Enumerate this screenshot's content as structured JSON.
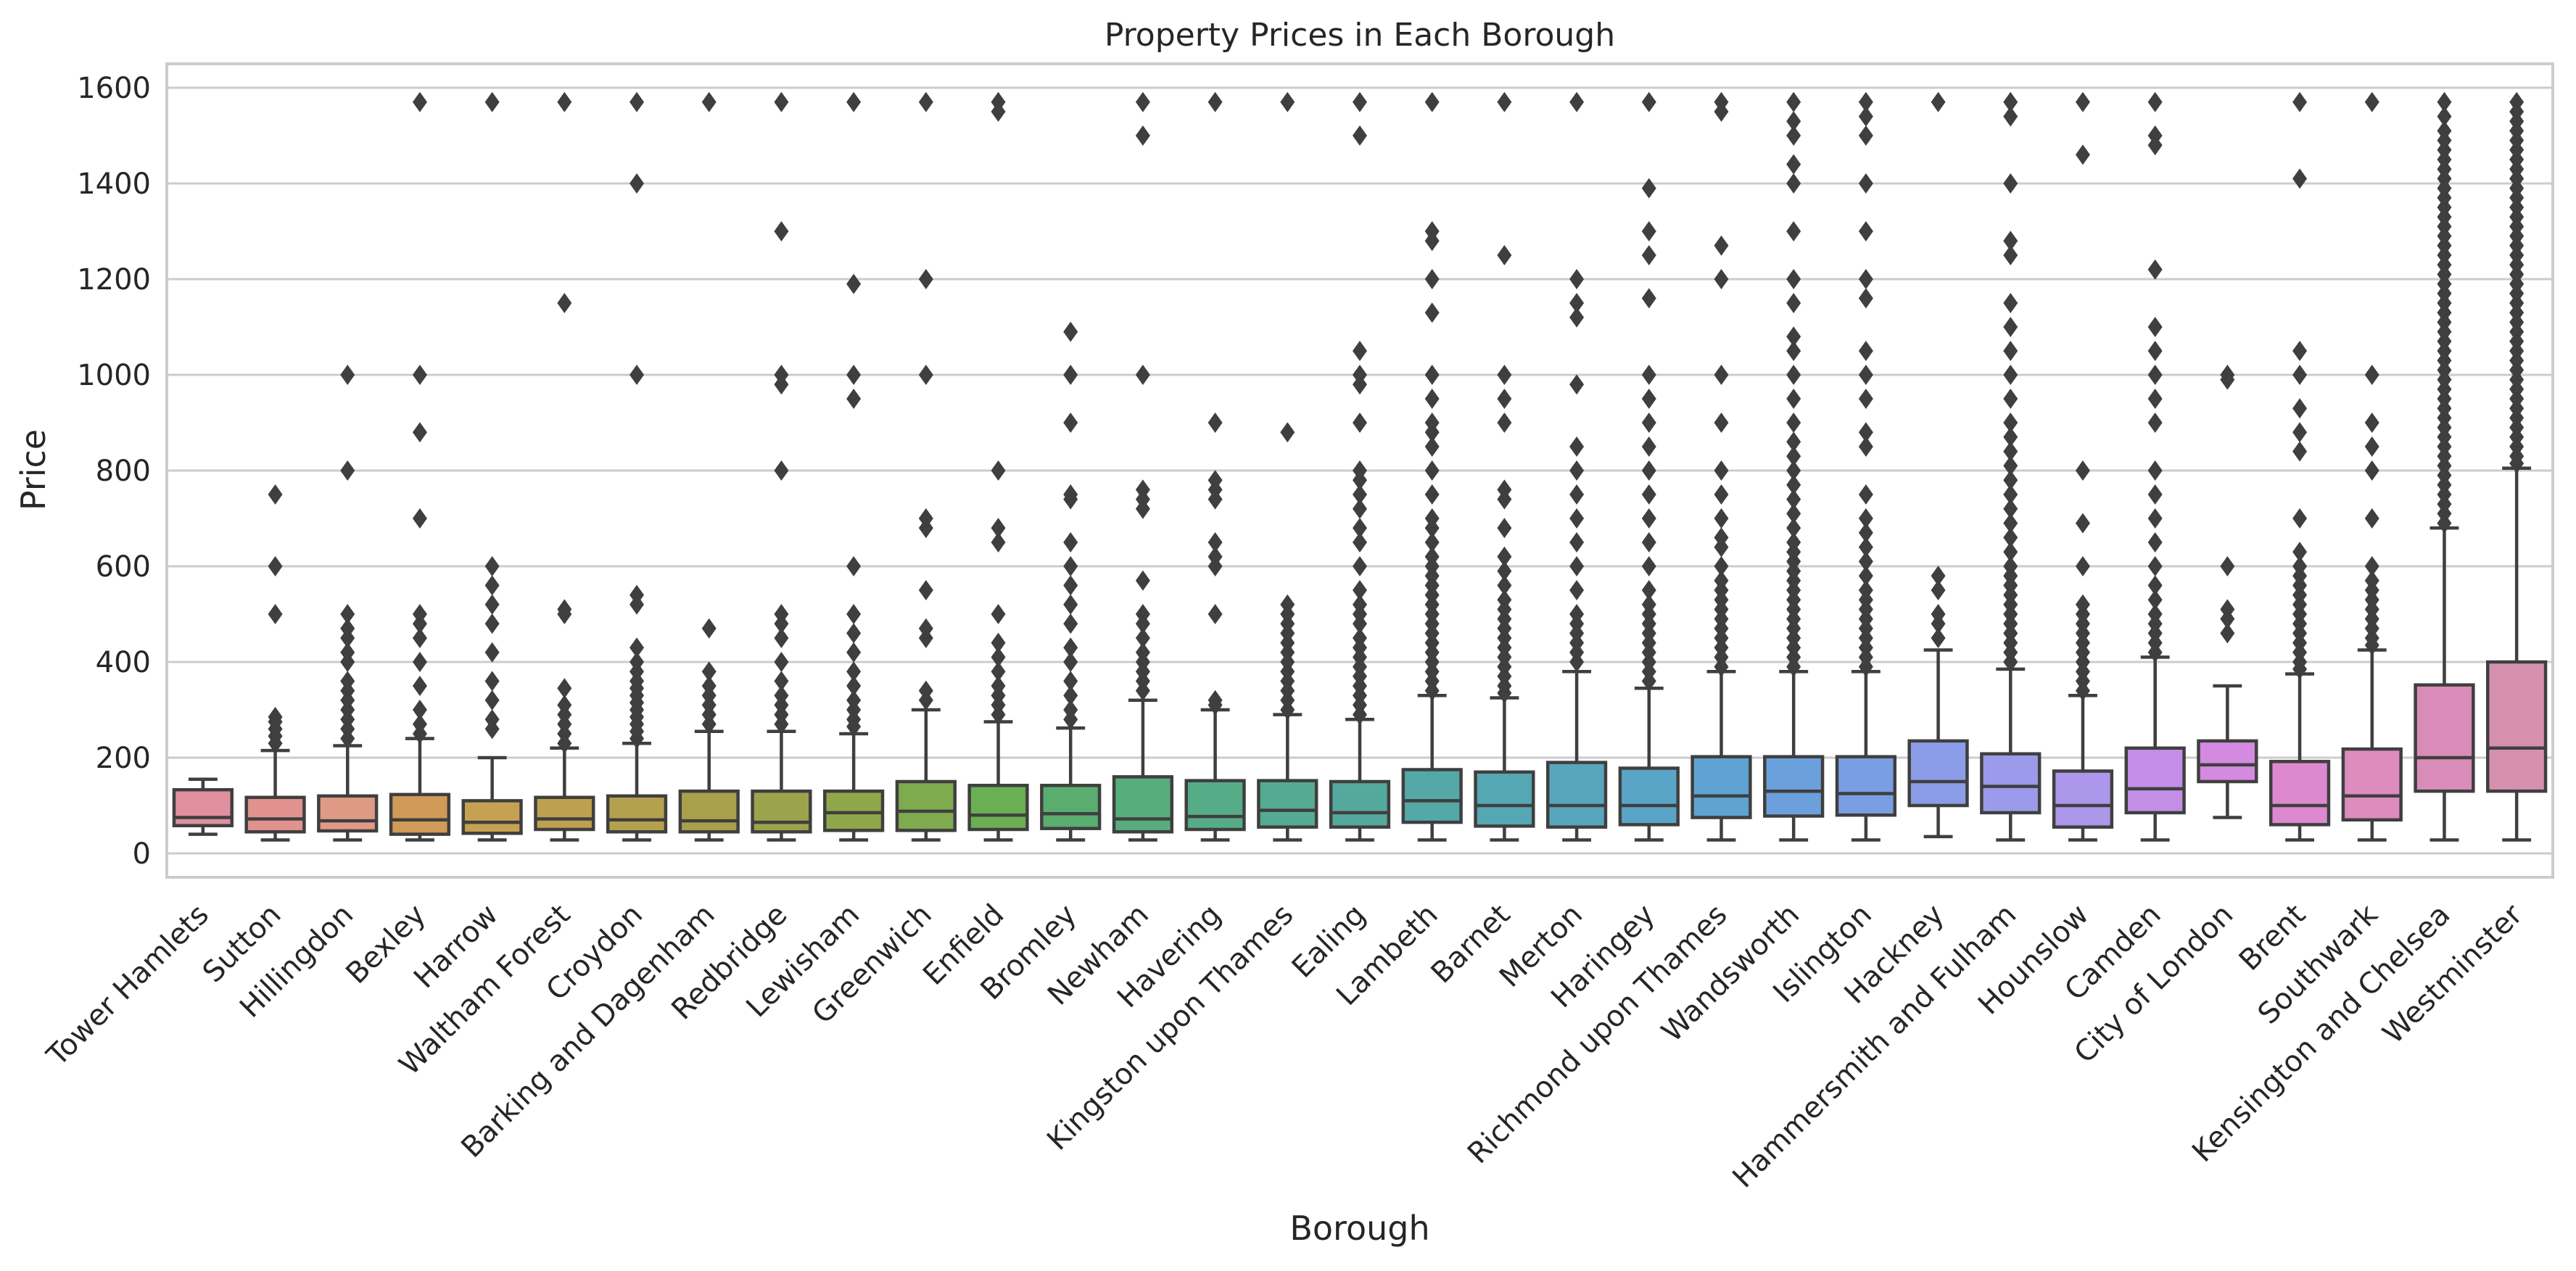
{
  "chart_data": {
    "type": "box",
    "title": "Property Prices in Each Borough",
    "xlabel": "Borough",
    "ylabel": "Price",
    "ylim": [
      -50,
      1650
    ],
    "yticks": [
      0,
      200,
      400,
      600,
      800,
      1000,
      1200,
      1400,
      1600
    ],
    "grid": true,
    "boxes": [
      {
        "name": "Tower Hamlets",
        "color": "#e0909f",
        "whisker_low": 40,
        "q1": 58,
        "median": 75,
        "q3": 133,
        "whisker_high": 155,
        "outliers": []
      },
      {
        "name": "Sutton",
        "color": "#e1928f",
        "whisker_low": 28,
        "q1": 45,
        "median": 72,
        "q3": 117,
        "whisker_high": 215,
        "outliers": [
          230,
          245,
          260,
          275,
          285,
          500,
          600,
          750
        ]
      },
      {
        "name": "Hillingdon",
        "color": "#df9a86",
        "whisker_low": 28,
        "q1": 47,
        "median": 68,
        "q3": 120,
        "whisker_high": 225,
        "outliers": [
          240,
          260,
          280,
          300,
          320,
          340,
          360,
          400,
          420,
          450,
          470,
          500,
          800,
          1000
        ]
      },
      {
        "name": "Bexley",
        "color": "#d09a58",
        "whisker_low": 28,
        "q1": 40,
        "median": 70,
        "q3": 123,
        "whisker_high": 240,
        "outliers": [
          250,
          270,
          300,
          350,
          400,
          450,
          480,
          500,
          700,
          880,
          1000,
          1570
        ]
      },
      {
        "name": "Harrow",
        "color": "#c7a152",
        "whisker_low": 28,
        "q1": 42,
        "median": 65,
        "q3": 110,
        "whisker_high": 200,
        "outliers": [
          260,
          280,
          320,
          360,
          420,
          480,
          520,
          560,
          600,
          1570
        ]
      },
      {
        "name": "Waltham Forest",
        "color": "#bea14e",
        "whisker_low": 28,
        "q1": 50,
        "median": 72,
        "q3": 117,
        "whisker_high": 220,
        "outliers": [
          230,
          250,
          270,
          290,
          310,
          345,
          500,
          510,
          1150,
          1570
        ]
      },
      {
        "name": "Croydon",
        "color": "#b5a14d",
        "whisker_low": 28,
        "q1": 45,
        "median": 70,
        "q3": 120,
        "whisker_high": 230,
        "outliers": [
          240,
          255,
          270,
          285,
          300,
          315,
          330,
          345,
          360,
          380,
          400,
          430,
          520,
          540,
          1000,
          1400,
          1570
        ]
      },
      {
        "name": "Barking and Dagenham",
        "color": "#a9a04c",
        "whisker_low": 28,
        "q1": 45,
        "median": 68,
        "q3": 130,
        "whisker_high": 255,
        "outliers": [
          270,
          290,
          310,
          330,
          350,
          380,
          470,
          1570
        ]
      },
      {
        "name": "Redbridge",
        "color": "#9ca34b",
        "whisker_low": 28,
        "q1": 45,
        "median": 65,
        "q3": 130,
        "whisker_high": 255,
        "outliers": [
          270,
          290,
          310,
          330,
          360,
          400,
          450,
          480,
          500,
          800,
          980,
          1000,
          1300,
          1570
        ]
      },
      {
        "name": "Lewisham",
        "color": "#8fa74b",
        "whisker_low": 28,
        "q1": 48,
        "median": 85,
        "q3": 130,
        "whisker_high": 250,
        "outliers": [
          265,
          280,
          300,
          320,
          350,
          380,
          420,
          460,
          500,
          600,
          950,
          1000,
          1190,
          1570
        ]
      },
      {
        "name": "Greenwich",
        "color": "#7fab4f",
        "whisker_low": 28,
        "q1": 48,
        "median": 88,
        "q3": 150,
        "whisker_high": 300,
        "outliers": [
          320,
          340,
          450,
          470,
          550,
          680,
          700,
          1000,
          1200,
          1570
        ]
      },
      {
        "name": "Enfield",
        "color": "#6aaf52",
        "whisker_low": 28,
        "q1": 50,
        "median": 80,
        "q3": 142,
        "whisker_high": 275,
        "outliers": [
          290,
          310,
          330,
          350,
          380,
          410,
          440,
          500,
          650,
          680,
          800,
          1550,
          1570
        ]
      },
      {
        "name": "Bromley",
        "color": "#59ae6f",
        "whisker_low": 28,
        "q1": 52,
        "median": 83,
        "q3": 142,
        "whisker_high": 262,
        "outliers": [
          280,
          300,
          330,
          360,
          400,
          430,
          480,
          520,
          560,
          600,
          650,
          740,
          750,
          900,
          1000,
          1090
        ]
      },
      {
        "name": "Newham",
        "color": "#58ad7d",
        "whisker_low": 28,
        "q1": 45,
        "median": 72,
        "q3": 160,
        "whisker_high": 320,
        "outliers": [
          340,
          360,
          380,
          400,
          420,
          450,
          480,
          500,
          570,
          720,
          740,
          760,
          1000,
          1500,
          1570
        ]
      },
      {
        "name": "Havering",
        "color": "#57ac88",
        "whisker_low": 28,
        "q1": 50,
        "median": 77,
        "q3": 152,
        "whisker_high": 300,
        "outliers": [
          310,
          320,
          500,
          600,
          620,
          650,
          740,
          760,
          780,
          900,
          1570
        ]
      },
      {
        "name": "Kingston upon Thames",
        "color": "#56aa93",
        "whisker_low": 28,
        "q1": 55,
        "median": 90,
        "q3": 152,
        "whisker_high": 290,
        "outliers": [
          300,
          320,
          340,
          360,
          380,
          400,
          420,
          440,
          460,
          480,
          500,
          520,
          880,
          1570
        ]
      },
      {
        "name": "Ealing",
        "color": "#55a99c",
        "whisker_low": 28,
        "q1": 55,
        "median": 85,
        "q3": 150,
        "whisker_high": 280,
        "outliers": [
          290,
          310,
          330,
          350,
          370,
          390,
          410,
          430,
          450,
          480,
          500,
          520,
          550,
          600,
          650,
          680,
          720,
          750,
          780,
          800,
          900,
          980,
          1000,
          1050,
          1500,
          1570
        ]
      },
      {
        "name": "Lambeth",
        "color": "#54a8a8",
        "whisker_low": 28,
        "q1": 65,
        "median": 110,
        "q3": 175,
        "whisker_high": 330,
        "outliers": [
          340,
          360,
          380,
          400,
          420,
          440,
          460,
          480,
          500,
          520,
          540,
          560,
          580,
          600,
          620,
          650,
          680,
          700,
          750,
          800,
          850,
          880,
          900,
          950,
          1000,
          1130,
          1200,
          1280,
          1300,
          1570
        ]
      },
      {
        "name": "Barnet",
        "color": "#55a7b3",
        "whisker_low": 28,
        "q1": 57,
        "median": 100,
        "q3": 170,
        "whisker_high": 325,
        "outliers": [
          335,
          350,
          370,
          390,
          410,
          430,
          450,
          470,
          490,
          510,
          530,
          560,
          590,
          620,
          680,
          740,
          760,
          900,
          950,
          1000,
          1250,
          1570
        ]
      },
      {
        "name": "Merton",
        "color": "#57a6bd",
        "whisker_low": 28,
        "q1": 55,
        "median": 100,
        "q3": 190,
        "whisker_high": 380,
        "outliers": [
          400,
          420,
          440,
          460,
          480,
          500,
          550,
          600,
          650,
          700,
          750,
          800,
          850,
          980,
          1120,
          1150,
          1200,
          1570
        ]
      },
      {
        "name": "Haringey",
        "color": "#5aa5c7",
        "whisker_low": 28,
        "q1": 60,
        "median": 100,
        "q3": 178,
        "whisker_high": 345,
        "outliers": [
          360,
          380,
          400,
          420,
          440,
          460,
          480,
          500,
          520,
          550,
          600,
          650,
          700,
          750,
          800,
          850,
          900,
          950,
          1000,
          1160,
          1250,
          1300,
          1390,
          1570
        ]
      },
      {
        "name": "Richmond upon Thames",
        "color": "#5fa3d2",
        "whisker_low": 28,
        "q1": 75,
        "median": 120,
        "q3": 202,
        "whisker_high": 380,
        "outliers": [
          390,
          410,
          430,
          450,
          470,
          490,
          510,
          530,
          550,
          570,
          600,
          640,
          660,
          700,
          750,
          800,
          900,
          1000,
          1200,
          1270,
          1550,
          1570
        ]
      },
      {
        "name": "Wandsworth",
        "color": "#6ba0dc",
        "whisker_low": 28,
        "q1": 78,
        "median": 130,
        "q3": 202,
        "whisker_high": 380,
        "outliers": [
          390,
          410,
          430,
          450,
          470,
          490,
          510,
          530,
          550,
          570,
          590,
          610,
          630,
          650,
          680,
          710,
          740,
          770,
          800,
          830,
          860,
          900,
          950,
          1000,
          1050,
          1080,
          1150,
          1200,
          1300,
          1400,
          1440,
          1500,
          1530,
          1570
        ]
      },
      {
        "name": "Islington",
        "color": "#7a9ee3",
        "whisker_low": 28,
        "q1": 80,
        "median": 125,
        "q3": 202,
        "whisker_high": 380,
        "outliers": [
          390,
          410,
          430,
          450,
          470,
          490,
          510,
          530,
          550,
          580,
          610,
          640,
          670,
          700,
          750,
          850,
          880,
          950,
          1000,
          1050,
          1160,
          1200,
          1300,
          1400,
          1500,
          1540,
          1570
        ]
      },
      {
        "name": "Hackney",
        "color": "#8b9de8",
        "whisker_low": 35,
        "q1": 100,
        "median": 150,
        "q3": 235,
        "whisker_high": 425,
        "outliers": [
          450,
          480,
          500,
          550,
          580,
          1570
        ]
      },
      {
        "name": "Hammersmith and Fulham",
        "color": "#9c9aeb",
        "whisker_low": 28,
        "q1": 85,
        "median": 140,
        "q3": 208,
        "whisker_high": 385,
        "outliers": [
          400,
          420,
          440,
          460,
          480,
          500,
          520,
          540,
          560,
          580,
          600,
          630,
          660,
          690,
          720,
          750,
          780,
          810,
          840,
          870,
          900,
          950,
          1000,
          1050,
          1100,
          1150,
          1250,
          1280,
          1400,
          1540,
          1570
        ]
      },
      {
        "name": "Hounslow",
        "color": "#ac97ea",
        "whisker_low": 28,
        "q1": 55,
        "median": 100,
        "q3": 172,
        "whisker_high": 330,
        "outliers": [
          340,
          360,
          380,
          400,
          420,
          440,
          460,
          480,
          500,
          520,
          600,
          690,
          800,
          1460,
          1570
        ]
      },
      {
        "name": "Camden",
        "color": "#c28ee6",
        "whisker_low": 28,
        "q1": 85,
        "median": 135,
        "q3": 220,
        "whisker_high": 410,
        "outliers": [
          420,
          440,
          460,
          480,
          500,
          530,
          560,
          600,
          650,
          700,
          750,
          800,
          900,
          950,
          1000,
          1050,
          1100,
          1220,
          1480,
          1500,
          1570
        ]
      },
      {
        "name": "City of London",
        "color": "#d38ae0",
        "whisker_low": 75,
        "q1": 150,
        "median": 185,
        "q3": 235,
        "whisker_high": 350,
        "outliers": [
          460,
          490,
          510,
          600,
          990,
          1000
        ]
      },
      {
        "name": "Brent",
        "color": "#dc89cf",
        "whisker_low": 28,
        "q1": 60,
        "median": 100,
        "q3": 192,
        "whisker_high": 375,
        "outliers": [
          385,
          400,
          420,
          440,
          460,
          480,
          500,
          520,
          540,
          560,
          580,
          600,
          630,
          700,
          840,
          880,
          930,
          1000,
          1050,
          1410,
          1570
        ]
      },
      {
        "name": "Southwark",
        "color": "#de8bc0",
        "whisker_low": 28,
        "q1": 70,
        "median": 120,
        "q3": 218,
        "whisker_high": 425,
        "outliers": [
          435,
          450,
          470,
          490,
          510,
          530,
          550,
          570,
          600,
          700,
          800,
          850,
          900,
          1000,
          1570
        ]
      },
      {
        "name": "Kensington and Chelsea",
        "color": "#d98cb7",
        "whisker_low": 28,
        "q1": 130,
        "median": 200,
        "q3": 352,
        "whisker_high": 680,
        "outliers": [
          690,
          710,
          730,
          750,
          770,
          790,
          810,
          830,
          850,
          870,
          890,
          910,
          930,
          950,
          970,
          990,
          1010,
          1030,
          1050,
          1070,
          1090,
          1110,
          1130,
          1150,
          1170,
          1190,
          1210,
          1230,
          1250,
          1270,
          1290,
          1310,
          1330,
          1350,
          1370,
          1390,
          1410,
          1430,
          1450,
          1470,
          1490,
          1510,
          1540,
          1570
        ]
      },
      {
        "name": "Westminster",
        "color": "#d590b0",
        "whisker_low": 28,
        "q1": 130,
        "median": 220,
        "q3": 400,
        "whisker_high": 805,
        "outliers": [
          815,
          830,
          850,
          870,
          890,
          910,
          930,
          950,
          970,
          990,
          1010,
          1030,
          1050,
          1070,
          1090,
          1110,
          1130,
          1150,
          1170,
          1190,
          1210,
          1230,
          1250,
          1270,
          1290,
          1310,
          1330,
          1350,
          1370,
          1390,
          1410,
          1430,
          1450,
          1470,
          1490,
          1510,
          1530,
          1550,
          1570
        ]
      }
    ]
  }
}
